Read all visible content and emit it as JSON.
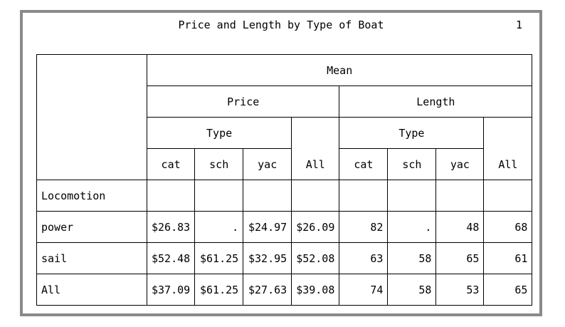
{
  "title": "Price and Length by Type of Boat",
  "page_number": "1",
  "header": {
    "stat": "Mean",
    "groups": [
      "Price",
      "Length"
    ],
    "class_var": "Type",
    "types": [
      "cat",
      "sch",
      "yac"
    ],
    "all_label": "All"
  },
  "row_var": "Locomotion",
  "rows": [
    {
      "label": "power",
      "price": [
        "$26.83",
        ".",
        "$24.97",
        "$26.09"
      ],
      "length": [
        "82",
        ".",
        "48",
        "68"
      ]
    },
    {
      "label": "sail",
      "price": [
        "$52.48",
        "$61.25",
        "$32.95",
        "$52.08"
      ],
      "length": [
        "63",
        "58",
        "65",
        "61"
      ]
    },
    {
      "label": "All",
      "price": [
        "$37.09",
        "$61.25",
        "$27.63",
        "$39.08"
      ],
      "length": [
        "74",
        "58",
        "53",
        "65"
      ]
    }
  ]
}
